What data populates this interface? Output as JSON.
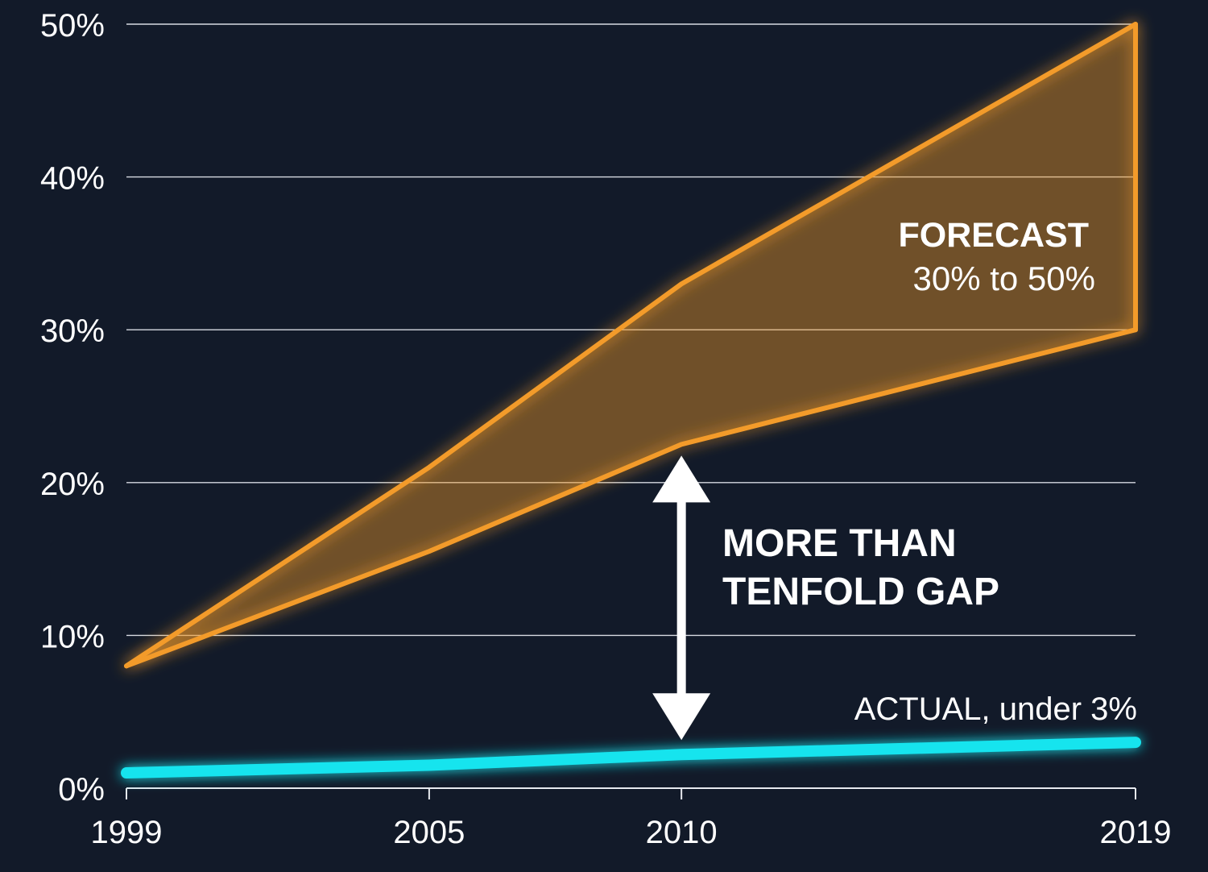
{
  "chart_data": {
    "type": "area",
    "x": [
      1999,
      2005,
      2010,
      2019
    ],
    "ylim": [
      0,
      50
    ],
    "yticks": [
      0,
      10,
      20,
      30,
      40,
      50
    ],
    "ytick_labels": [
      "0%",
      "10%",
      "20%",
      "30%",
      "40%",
      "50%"
    ],
    "xtick_labels": [
      "1999",
      "2005",
      "2010",
      "2019"
    ],
    "grid": true,
    "series": [
      {
        "type": "band",
        "color": "#f39b2a",
        "lower": [
          8,
          15.5,
          22.5,
          30
        ],
        "upper": [
          8,
          21,
          33,
          50
        ]
      },
      {
        "type": "line",
        "color": "#19e4ee",
        "values": [
          1,
          1.5,
          2.2,
          3
        ]
      }
    ],
    "annotations": {
      "forecast_title": "FORECAST",
      "forecast_range": "30% to 50%",
      "gap_line1": "MORE THAN",
      "gap_line2": "TENFOLD GAP",
      "actual_label": "ACTUAL, under 3%"
    },
    "gap_arrow": {
      "x": 2010,
      "from": 22.5,
      "to": 2.2
    }
  }
}
